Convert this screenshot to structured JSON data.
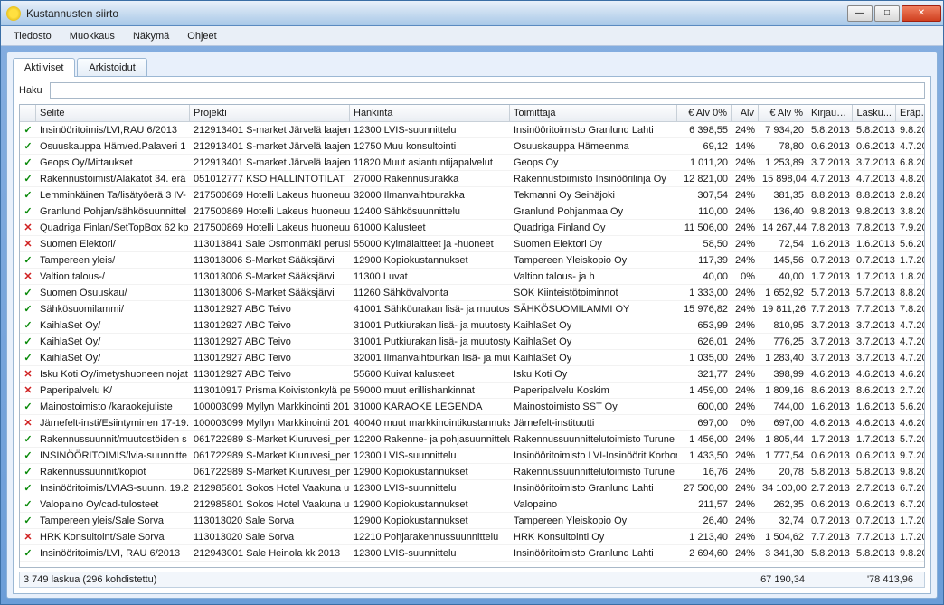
{
  "window": {
    "title": "Kustannusten siirto"
  },
  "menu": {
    "tiedosto": "Tiedosto",
    "muokkaus": "Muokkaus",
    "nakyma": "Näkymä",
    "ohjeet": "Ohjeet"
  },
  "tabs": {
    "aktiiviset": "Aktiiviset",
    "arkistoidut": "Arkistoidut"
  },
  "search": {
    "label": "Haku",
    "value": ""
  },
  "columns": {
    "selite": "Selite",
    "projekti": "Projekti",
    "hankinta": "Hankinta",
    "toimittaja": "Toimittaja",
    "alv0": "€ Alv 0%",
    "alv": "Alv",
    "alvp": "€ Alv %",
    "kirjaus": "Kirjaus...",
    "lasku": "Lasku...",
    "erapai": "Eräpäi...",
    "more": "..."
  },
  "rows": [
    {
      "st": "ok",
      "selite": "Insinööritoimis/LVI,RAU 6/2013",
      "projekti": "212913401 S-market Järvelä laajenn",
      "hankinta": "12300 LVIS-suunnittelu",
      "toimittaja": "Insinööritoimisto Granlund Lahti",
      "alv0": "6 398,55",
      "alv": "24%",
      "alvp": "7 934,20",
      "kirj": "5.8.2013",
      "lask": "5.8.2013",
      "erap": "9.8.2013"
    },
    {
      "st": "ok",
      "selite": "Osuuskauppa Häm/ed.Palaveri 1",
      "projekti": "212913401 S-market Järvelä laajenn",
      "hankinta": "12750 Muu konsultointi",
      "toimittaja": "Osuuskauppa Hämeenma",
      "alv0": "69,12",
      "alv": "14%",
      "alvp": "78,80",
      "kirj": "0.6.2013",
      "lask": "0.6.2013",
      "erap": "4.7.2013"
    },
    {
      "st": "ok",
      "selite": "Geops Oy/Mittaukset",
      "projekti": "212913401 S-market Järvelä laajenn",
      "hankinta": "11820 Muut asiantuntijapalvelut",
      "toimittaja": "Geops Oy",
      "alv0": "1 011,20",
      "alv": "24%",
      "alvp": "1 253,89",
      "kirj": "3.7.2013",
      "lask": "3.7.2013",
      "erap": "6.8.2013"
    },
    {
      "st": "ok",
      "selite": "Rakennustoimist/Alakatot 34. erä",
      "projekti": "051012777 KSO HALLINTOTILAT",
      "hankinta": "27000 Rakennusurakka",
      "toimittaja": "Rakennustoimisto Insinöörilinja Oy",
      "alv0": "12 821,00",
      "alv": "24%",
      "alvp": "15 898,04",
      "kirj": "4.7.2013",
      "lask": "4.7.2013",
      "erap": "4.8.2013"
    },
    {
      "st": "ok",
      "selite": "Lemminkäinen Ta/lisätyöerä 3 IV-",
      "projekti": "217500869 Hotelli Lakeus huoneuuc",
      "hankinta": "32000 Ilmanvaihtourakka",
      "toimittaja": "Tekmanni Oy Seinäjoki",
      "alv0": "307,54",
      "alv": "24%",
      "alvp": "381,35",
      "kirj": "8.8.2013",
      "lask": "8.8.2013",
      "erap": "2.8.2013"
    },
    {
      "st": "ok",
      "selite": "Granlund Pohjan/sähkösuunnittel",
      "projekti": "217500869 Hotelli Lakeus huoneuuc",
      "hankinta": "12400 Sähkösuunnittelu",
      "toimittaja": "Granlund Pohjanmaa Oy",
      "alv0": "110,00",
      "alv": "24%",
      "alvp": "136,40",
      "kirj": "9.8.2013",
      "lask": "9.8.2013",
      "erap": "3.8.2013"
    },
    {
      "st": "x",
      "selite": "Quadriga Finlan/SetTopBox 62 kp",
      "projekti": "217500869 Hotelli Lakeus huoneuuc",
      "hankinta": "61000 Kalusteet",
      "toimittaja": "Quadriga Finland Oy",
      "alv0": "11 506,00",
      "alv": "24%",
      "alvp": "14 267,44",
      "kirj": "7.8.2013",
      "lask": "7.8.2013",
      "erap": "7.9.2013"
    },
    {
      "st": "x",
      "selite": "Suomen Elektori/",
      "projekti": "113013841 Sale Osmonmäki perusk",
      "hankinta": "55000 Kylmälaitteet ja -huoneet",
      "toimittaja": "Suomen Elektori Oy",
      "alv0": "58,50",
      "alv": "24%",
      "alvp": "72,54",
      "kirj": "1.6.2013",
      "lask": "1.6.2013",
      "erap": "5.6.2013"
    },
    {
      "st": "ok",
      "selite": "Tampereen yleis/",
      "projekti": "113013006 S-Market Sääksjärvi",
      "hankinta": "12900 Kopiokustannukset",
      "toimittaja": "Tampereen Yleiskopio Oy",
      "alv0": "117,39",
      "alv": "24%",
      "alvp": "145,56",
      "kirj": "0.7.2013",
      "lask": "0.7.2013",
      "erap": "1.7.2013"
    },
    {
      "st": "x",
      "selite": "Valtion talous-/",
      "projekti": "113013006 S-Market Sääksjärvi",
      "hankinta": "11300 Luvat",
      "toimittaja": "Valtion talous- ja h",
      "alv0": "40,00",
      "alv": "0%",
      "alvp": "40,00",
      "kirj": "1.7.2013",
      "lask": "1.7.2013",
      "erap": "1.8.2013"
    },
    {
      "st": "ok",
      "selite": "Suomen Osuuskau/",
      "projekti": "113013006 S-Market Sääksjärvi",
      "hankinta": "11260 Sähkövalvonta",
      "toimittaja": "SOK Kiinteistötoiminnot",
      "alv0": "1 333,00",
      "alv": "24%",
      "alvp": "1 652,92",
      "kirj": "5.7.2013",
      "lask": "5.7.2013",
      "erap": "8.8.2013"
    },
    {
      "st": "ok",
      "selite": "Sähkösuomilammi/",
      "projekti": "113012927 ABC Teivo",
      "hankinta": "41001 Sähköurakan lisä- ja muutosty",
      "toimittaja": "SÄHKÖSUOMILAMMI OY",
      "alv0": "15 976,82",
      "alv": "24%",
      "alvp": "19 811,26",
      "kirj": "7.7.2013",
      "lask": "7.7.2013",
      "erap": "7.8.2013"
    },
    {
      "st": "ok",
      "selite": "KaihlaSet Oy/",
      "projekti": "113012927 ABC Teivo",
      "hankinta": "31001 Putkiurakan lisä- ja muutostyö",
      "toimittaja": "KaihlaSet Oy",
      "alv0": "653,99",
      "alv": "24%",
      "alvp": "810,95",
      "kirj": "3.7.2013",
      "lask": "3.7.2013",
      "erap": "4.7.2013"
    },
    {
      "st": "ok",
      "selite": "KaihlaSet Oy/",
      "projekti": "113012927 ABC Teivo",
      "hankinta": "31001 Putkiurakan lisä- ja muutostyö",
      "toimittaja": "KaihlaSet Oy",
      "alv0": "626,01",
      "alv": "24%",
      "alvp": "776,25",
      "kirj": "3.7.2013",
      "lask": "3.7.2013",
      "erap": "4.7.2013"
    },
    {
      "st": "ok",
      "selite": "KaihlaSet Oy/",
      "projekti": "113012927 ABC Teivo",
      "hankinta": "32001 Ilmanvaihtourkan lisä- ja muut",
      "toimittaja": "KaihlaSet Oy",
      "alv0": "1 035,00",
      "alv": "24%",
      "alvp": "1 283,40",
      "kirj": "3.7.2013",
      "lask": "3.7.2013",
      "erap": "4.7.2013"
    },
    {
      "st": "x",
      "selite": "Isku Koti Oy/imetyshuoneen nojat",
      "projekti": "113012927 ABC Teivo",
      "hankinta": "55600 Kuivat kalusteet",
      "toimittaja": "Isku Koti Oy",
      "alv0": "321,77",
      "alv": "24%",
      "alvp": "398,99",
      "kirj": "4.6.2013",
      "lask": "4.6.2013",
      "erap": "4.6.2013"
    },
    {
      "st": "x",
      "selite": "Paperipalvelu K/",
      "projekti": "113010917 Prisma Koivistonkylä per",
      "hankinta": "59000 muut erillishankinnat",
      "toimittaja": "Paperipalvelu Koskim",
      "alv0": "1 459,00",
      "alv": "24%",
      "alvp": "1 809,16",
      "kirj": "8.6.2013",
      "lask": "8.6.2013",
      "erap": "2.7.2013"
    },
    {
      "st": "ok",
      "selite": "Mainostoimisto /karaokejuliste",
      "projekti": "100003099 Myllyn Markkinointi 2013",
      "hankinta": "31000 KARAOKE LEGENDA",
      "toimittaja": "Mainostoimisto SST Oy",
      "alv0": "600,00",
      "alv": "24%",
      "alvp": "744,00",
      "kirj": "1.6.2013",
      "lask": "1.6.2013",
      "erap": "5.6.2013"
    },
    {
      "st": "x",
      "selite": "Järnefelt-insti/Esiintyminen 17-19.",
      "projekti": "100003099 Myllyn Markkinointi 2013",
      "hankinta": "40040 muut markkinointikustannukse",
      "toimittaja": "Järnefelt-instituutti",
      "alv0": "697,00",
      "alv": "0%",
      "alvp": "697,00",
      "kirj": "4.6.2013",
      "lask": "4.6.2013",
      "erap": "4.6.2013"
    },
    {
      "st": "ok",
      "selite": "Rakennussuunnit/muutostöiden s",
      "projekti": "061722989 S-Market Kiuruvesi_peru",
      "hankinta": "12200 Rakenne- ja pohjasuunnittelu",
      "toimittaja": "Rakennussuunnittelutoimisto Turune",
      "alv0": "1 456,00",
      "alv": "24%",
      "alvp": "1 805,44",
      "kirj": "1.7.2013",
      "lask": "1.7.2013",
      "erap": "5.7.2013"
    },
    {
      "st": "ok",
      "selite": "INSINÖÖRITOIMIS/lvia-suunnitte",
      "projekti": "061722989 S-Market Kiuruvesi_peru",
      "hankinta": "12300 LVIS-suunnittelu",
      "toimittaja": "Insinööritoimisto LVI-Insinöörit Korhor",
      "alv0": "1 433,50",
      "alv": "24%",
      "alvp": "1 777,54",
      "kirj": "0.6.2013",
      "lask": "0.6.2013",
      "erap": "9.7.2013"
    },
    {
      "st": "ok",
      "selite": "Rakennussuunnit/kopiot",
      "projekti": "061722989 S-Market Kiuruvesi_peru",
      "hankinta": "12900 Kopiokustannukset",
      "toimittaja": "Rakennussuunnittelutoimisto Turune",
      "alv0": "16,76",
      "alv": "24%",
      "alvp": "20,78",
      "kirj": "5.8.2013",
      "lask": "5.8.2013",
      "erap": "9.8.2013"
    },
    {
      "st": "ok",
      "selite": "Insinööritoimis/LVIAS-suunn.  19.2",
      "projekti": "212985801 Sokos Hotel Vaakuna uu",
      "hankinta": "12300 LVIS-suunnittelu",
      "toimittaja": "Insinööritoimisto Granlund Lahti",
      "alv0": "27 500,00",
      "alv": "24%",
      "alvp": "34 100,00",
      "kirj": "2.7.2013",
      "lask": "2.7.2013",
      "erap": "6.7.2013"
    },
    {
      "st": "ok",
      "selite": "Valopaino Oy/cad-tulosteet",
      "projekti": "212985801 Sokos Hotel Vaakuna uu",
      "hankinta": "12900 Kopiokustannukset",
      "toimittaja": "Valopaino",
      "alv0": "211,57",
      "alv": "24%",
      "alvp": "262,35",
      "kirj": "0.6.2013",
      "lask": "0.6.2013",
      "erap": "6.7.2013"
    },
    {
      "st": "ok",
      "selite": "Tampereen yleis/Sale Sorva",
      "projekti": "113013020 Sale Sorva",
      "hankinta": "12900 Kopiokustannukset",
      "toimittaja": "Tampereen Yleiskopio Oy",
      "alv0": "26,40",
      "alv": "24%",
      "alvp": "32,74",
      "kirj": "0.7.2013",
      "lask": "0.7.2013",
      "erap": "1.7.2013"
    },
    {
      "st": "x",
      "selite": "HRK Konsultoint/Sale Sorva",
      "projekti": "113013020 Sale Sorva",
      "hankinta": "12210 Pohjarakennussuunnittelu",
      "toimittaja": "HRK Konsultointi Oy",
      "alv0": "1 213,40",
      "alv": "24%",
      "alvp": "1 504,62",
      "kirj": "7.7.2013",
      "lask": "7.7.2013",
      "erap": "1.7.2013"
    },
    {
      "st": "ok",
      "selite": "Insinööritoimis/LVI, RAU 6/2013",
      "projekti": "212943001 Sale Heinola kk 2013",
      "hankinta": "12300 LVIS-suunnittelu",
      "toimittaja": "Insinööritoimisto Granlund Lahti",
      "alv0": "2 694,60",
      "alv": "24%",
      "alvp": "3 341,30",
      "kirj": "5.8.2013",
      "lask": "5.8.2013",
      "erap": "9.8.2013"
    }
  ],
  "status": {
    "left": "3 749 laskua (296 kohdistettu)",
    "sum1": "67 190,34",
    "sum2": "'78 413,96"
  }
}
